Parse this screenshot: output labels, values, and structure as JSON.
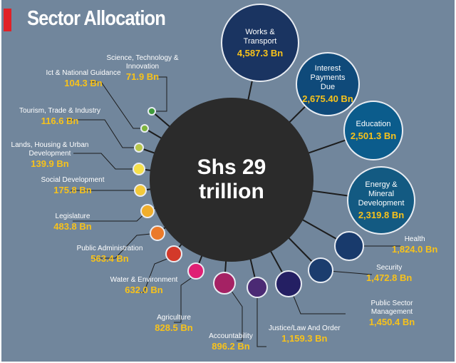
{
  "chart_data": {
    "type": "bubble",
    "title": "Sector Allocation",
    "total_label": "Shs 29 trillion",
    "unit": "Bn",
    "sectors": [
      {
        "name": "Works & Transport",
        "value": 4587.3,
        "label": "4,587.3 Bn",
        "color": "#1a3461"
      },
      {
        "name": "Interest Payments Due",
        "value": 2675.4,
        "label": "2,675.40 Bn",
        "color": "#0f4a7a"
      },
      {
        "name": "Education",
        "value": 2501.3,
        "label": "2,501.3 Bn",
        "color": "#0b5c8c"
      },
      {
        "name": "Energy & Mineral Development",
        "value": 2319.8,
        "label": "2,319.8 Bn",
        "color": "#135a82"
      },
      {
        "name": "Health",
        "value": 1824.0,
        "label": "1,824.0 Bn",
        "color": "#183a6c"
      },
      {
        "name": "Security",
        "value": 1472.8,
        "label": "1,472.8 Bn",
        "color": "#1b3d6e"
      },
      {
        "name": "Public Sector Management",
        "value": 1450.4,
        "label": "1,450.4 Bn",
        "color": "#241f63"
      },
      {
        "name": "Justice/Law And Order",
        "value": 1159.3,
        "label": "1,159.3 Bn",
        "color": "#4b2a74"
      },
      {
        "name": "Accountability",
        "value": 896.2,
        "label": "896.2 Bn",
        "color": "#a52264"
      },
      {
        "name": "Agriculture",
        "value": 828.5,
        "label": "828.5 Bn",
        "color": "#e01f74"
      },
      {
        "name": "Water & Environment",
        "value": 632.0,
        "label": "632.0 Bn",
        "color": "#d3392a"
      },
      {
        "name": "Public Administration",
        "value": 563.4,
        "label": "563.4 Bn",
        "color": "#eb7a2a"
      },
      {
        "name": "Legislature",
        "value": 483.8,
        "label": "483.8 Bn",
        "color": "#f0ae2c"
      },
      {
        "name": "Social Development",
        "value": 175.8,
        "label": "175.8 Bn",
        "color": "#f2c93a"
      },
      {
        "name": "Lands, Housing & Urban Development",
        "value": 139.9,
        "label": "139.9 Bn",
        "color": "#f6e04a"
      },
      {
        "name": "Tourism, Trade & Industry",
        "value": 116.6,
        "label": "116.6 Bn",
        "color": "#b8c74a"
      },
      {
        "name": "Ict & National Guidance",
        "value": 104.3,
        "label": "104.3 Bn",
        "color": "#7db43c"
      },
      {
        "name": "Science, Technology & Innovation",
        "value": 71.9,
        "label": "71.9 Bn",
        "color": "#3f9a3b"
      }
    ]
  }
}
